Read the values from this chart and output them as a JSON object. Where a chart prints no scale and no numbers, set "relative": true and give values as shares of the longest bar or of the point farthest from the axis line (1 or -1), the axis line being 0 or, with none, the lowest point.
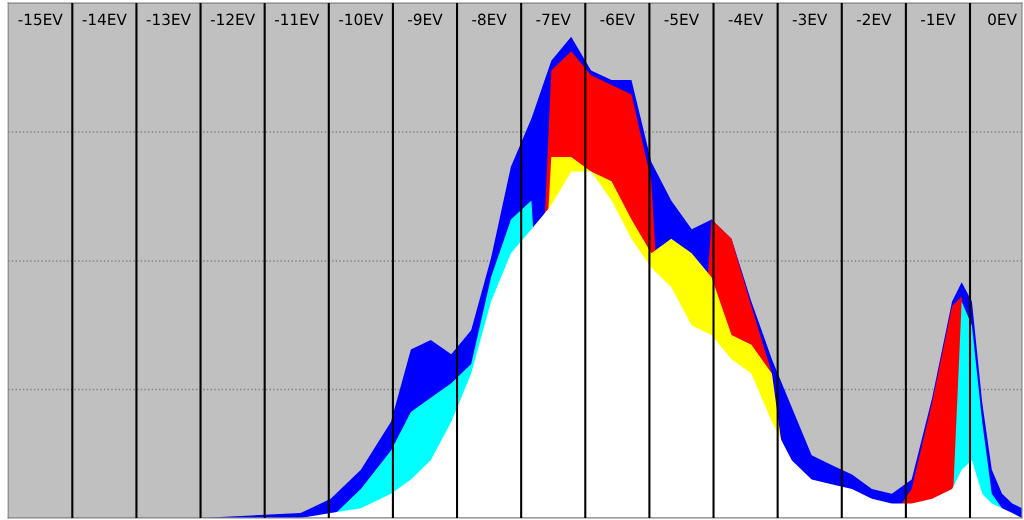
{
  "chart_data": {
    "type": "area",
    "relative": true,
    "tick_labels": "x",
    "x": [
      -15.5,
      -12.5,
      -10.94,
      -10.47,
      -10.0,
      -9.53,
      -9.22,
      -8.91,
      -8.59,
      -8.28,
      -7.97,
      -7.66,
      -7.34,
      -7.03,
      -6.72,
      -6.41,
      -6.09,
      -5.78,
      -5.47,
      -5.16,
      -4.84,
      -4.53,
      -4.22,
      -3.91,
      -3.59,
      -3.28,
      -2.97,
      -2.66,
      -2.34,
      -2.03,
      -1.72,
      -1.41,
      -1.09,
      -0.78,
      -0.63,
      -0.47,
      -0.31,
      -0.16,
      0.0,
      0.16,
      0.31
    ],
    "xlim": [
      -15.5,
      0.31
    ],
    "xticks": [
      {
        "value": -15,
        "label": "-15EV"
      },
      {
        "value": -14,
        "label": "-14EV"
      },
      {
        "value": -13,
        "label": "-13EV"
      },
      {
        "value": -12,
        "label": "-12EV"
      },
      {
        "value": -11,
        "label": "-11EV"
      },
      {
        "value": -10,
        "label": "-10EV"
      },
      {
        "value": -9,
        "label": "-9EV"
      },
      {
        "value": -8,
        "label": "-8EV"
      },
      {
        "value": -7,
        "label": "-7EV"
      },
      {
        "value": -6,
        "label": "-6EV"
      },
      {
        "value": -5,
        "label": "-5EV"
      },
      {
        "value": -4,
        "label": "-4EV"
      },
      {
        "value": -3,
        "label": "-3EV"
      },
      {
        "value": -2,
        "label": "-2EV"
      },
      {
        "value": -1,
        "label": "-1EV"
      },
      {
        "value": 0,
        "label": "0EV"
      }
    ],
    "series": [
      {
        "color": "#0000ff",
        "values": [
          0,
          0.0,
          0.01,
          0.04,
          0.1,
          0.2,
          0.35,
          0.37,
          0.34,
          0.39,
          0.54,
          0.73,
          0.83,
          0.95,
          1.0,
          0.93,
          0.91,
          0.91,
          0.74,
          0.66,
          0.6,
          0.62,
          0.58,
          0.45,
          0.33,
          0.23,
          0.13,
          0.11,
          0.09,
          0.06,
          0.05,
          0.08,
          0.25,
          0.45,
          0.49,
          0.45,
          0.24,
          0.1,
          0.05,
          0.03,
          0.02
        ]
      },
      {
        "color": "#ff0000",
        "values": [
          0,
          0,
          0,
          0,
          0,
          0,
          0,
          0,
          0,
          0,
          0,
          0,
          0,
          0.93,
          0.97,
          0.92,
          0.9,
          0.88,
          0.7,
          0,
          0,
          0.62,
          0.58,
          0.44,
          0.3,
          0,
          0,
          0,
          0,
          0,
          0,
          0.06,
          0.24,
          0.44,
          0.46,
          0,
          0,
          0,
          0,
          0,
          0
        ]
      },
      {
        "color": "#ffff00",
        "values": [
          0,
          0,
          0,
          0,
          0,
          0,
          0,
          0,
          0,
          0,
          0,
          0,
          0,
          0.75,
          0.75,
          0.72,
          0.7,
          0.62,
          0.55,
          0.58,
          0.55,
          0.5,
          0.38,
          0.36,
          0.3,
          0,
          0,
          0,
          0,
          0,
          0,
          0,
          0,
          0,
          0,
          0,
          0,
          0,
          0,
          0,
          0
        ]
      },
      {
        "color": "#00ffff",
        "values": [
          0,
          0,
          0,
          0,
          0.06,
          0.14,
          0.22,
          0.25,
          0.28,
          0.32,
          0.5,
          0.62,
          0.66,
          0,
          0,
          0,
          0,
          0,
          0,
          0,
          0,
          0,
          0,
          0,
          0,
          0,
          0,
          0,
          0,
          0,
          0,
          0,
          0,
          0,
          0.45,
          0.4,
          0.2,
          0.05,
          0.02,
          0,
          0
        ]
      },
      {
        "color": "#ffffff",
        "values": [
          0,
          0,
          0,
          0.01,
          0.02,
          0.05,
          0.08,
          0.12,
          0.2,
          0.3,
          0.45,
          0.55,
          0.6,
          0.65,
          0.72,
          0.72,
          0.66,
          0.58,
          0.52,
          0.48,
          0.4,
          0.38,
          0.33,
          0.3,
          0.2,
          0.12,
          0.08,
          0.07,
          0.06,
          0.04,
          0.03,
          0.03,
          0.04,
          0.06,
          0.1,
          0.12,
          0.05,
          0.03,
          0.02,
          0.01,
          0
        ]
      }
    ],
    "ref_lines": [
      {
        "axis": "y",
        "value": 0.267,
        "color": "#808080",
        "line_style": "dotted"
      },
      {
        "axis": "y",
        "value": 0.534,
        "color": "#808080",
        "line_style": "dotted"
      },
      {
        "axis": "y",
        "value": 0.802,
        "color": "#808080",
        "line_style": "dotted"
      },
      {
        "axis": "x",
        "value": -14.5,
        "color": "#000000",
        "line_style": "solid"
      },
      {
        "axis": "x",
        "value": -13.5,
        "color": "#000000",
        "line_style": "solid"
      },
      {
        "axis": "x",
        "value": -12.5,
        "color": "#000000",
        "line_style": "solid"
      },
      {
        "axis": "x",
        "value": -11.5,
        "color": "#000000",
        "line_style": "solid"
      },
      {
        "axis": "x",
        "value": -10.5,
        "color": "#000000",
        "line_style": "solid"
      },
      {
        "axis": "x",
        "value": -9.5,
        "color": "#000000",
        "line_style": "solid"
      },
      {
        "axis": "x",
        "value": -8.5,
        "color": "#000000",
        "line_style": "solid"
      },
      {
        "axis": "x",
        "value": -7.5,
        "color": "#000000",
        "line_style": "solid"
      },
      {
        "axis": "x",
        "value": -6.5,
        "color": "#000000",
        "line_style": "solid"
      },
      {
        "axis": "x",
        "value": -5.5,
        "color": "#000000",
        "line_style": "solid"
      },
      {
        "axis": "x",
        "value": -4.5,
        "color": "#000000",
        "line_style": "solid"
      },
      {
        "axis": "x",
        "value": -3.5,
        "color": "#000000",
        "line_style": "solid"
      },
      {
        "axis": "x",
        "value": -2.5,
        "color": "#000000",
        "line_style": "solid"
      },
      {
        "axis": "x",
        "value": -1.5,
        "color": "#000000",
        "line_style": "solid"
      },
      {
        "axis": "x",
        "value": -0.5,
        "color": "#000000",
        "line_style": "solid"
      }
    ]
  }
}
